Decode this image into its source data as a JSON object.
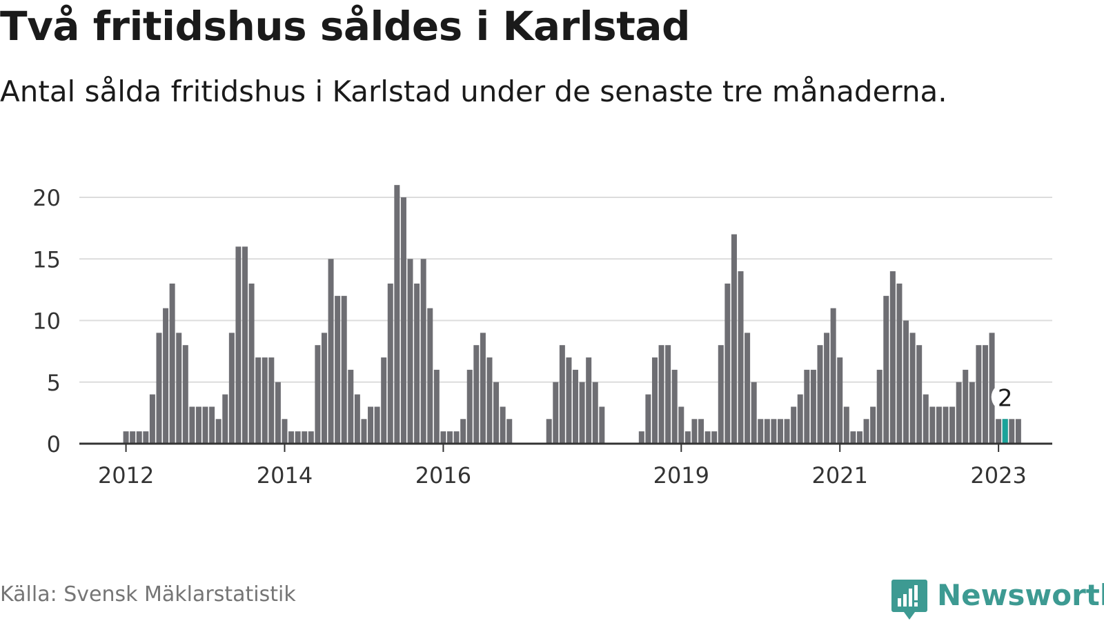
{
  "title": "Två fritidshus såldes i Karlstad",
  "subtitle": "Antal sålda fritidshus i Karlstad under de senaste tre månaderna.",
  "source": "Källa: Svensk Mäklarstatistik",
  "brand": {
    "name": "Newsworthy",
    "icon": "newsworthy-chart-icon",
    "color": "#3d9a92"
  },
  "colors": {
    "bar": "#6e6e73",
    "highlight": "#1aa39a",
    "grid": "#dcdcdc",
    "axis": "#333333"
  },
  "chart_data": {
    "type": "bar",
    "ylim": [
      0,
      20
    ],
    "yticks": [
      0,
      5,
      10,
      15,
      20
    ],
    "xticks": [
      {
        "label": "2012",
        "index": 1
      },
      {
        "label": "2014",
        "index": 25
      },
      {
        "label": "2016",
        "index": 49
      },
      {
        "label": "2019",
        "index": 85
      },
      {
        "label": "2021",
        "index": 109
      },
      {
        "label": "2023",
        "index": 133
      }
    ],
    "grid": true,
    "values": [
      null,
      1,
      1,
      1,
      1,
      4,
      9,
      11,
      13,
      9,
      8,
      3,
      3,
      3,
      3,
      2,
      4,
      9,
      16,
      16,
      13,
      7,
      7,
      7,
      5,
      2,
      1,
      1,
      1,
      1,
      8,
      9,
      15,
      12,
      12,
      6,
      4,
      2,
      3,
      3,
      7,
      13,
      21,
      20,
      15,
      13,
      15,
      11,
      6,
      1,
      1,
      1,
      2,
      6,
      8,
      9,
      7,
      5,
      3,
      2,
      null,
      null,
      null,
      null,
      null,
      2,
      5,
      8,
      7,
      6,
      5,
      7,
      5,
      3,
      null,
      null,
      null,
      null,
      null,
      1,
      4,
      7,
      8,
      8,
      6,
      3,
      1,
      2,
      2,
      1,
      1,
      8,
      13,
      17,
      14,
      9,
      5,
      2,
      2,
      2,
      2,
      2,
      3,
      4,
      6,
      6,
      8,
      9,
      11,
      7,
      3,
      1,
      1,
      2,
      3,
      6,
      12,
      14,
      13,
      10,
      9,
      8,
      4,
      3,
      3,
      3,
      3,
      5,
      6,
      5,
      8,
      8,
      9,
      2,
      2,
      2,
      2
    ],
    "highlight": {
      "index": 134,
      "value": 2,
      "label": "2"
    }
  }
}
